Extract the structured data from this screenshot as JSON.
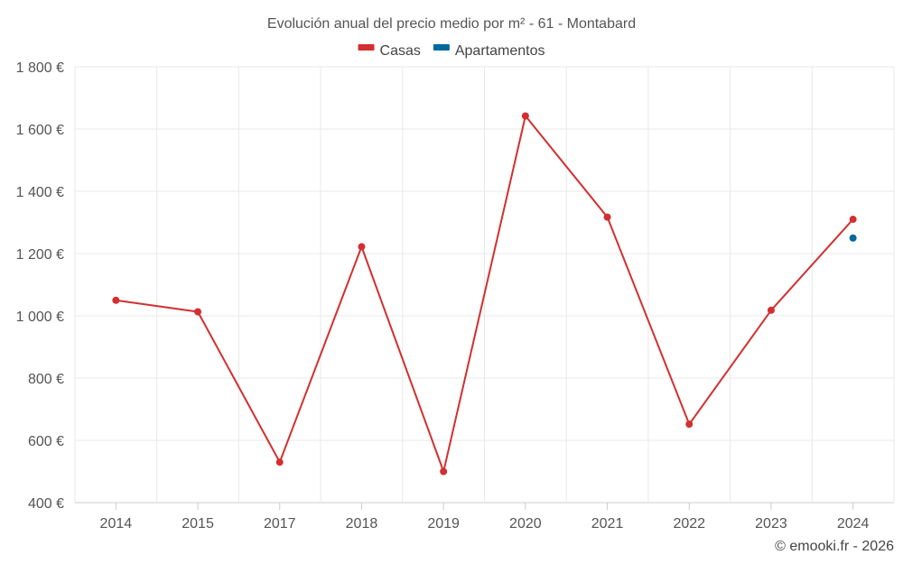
{
  "chart_data": {
    "type": "line",
    "title": "Evolución anual del precio medio por m² - 61 - Montabard",
    "categories": [
      "2014",
      "2015",
      "2017",
      "2018",
      "2019",
      "2020",
      "2021",
      "2022",
      "2023",
      "2024"
    ],
    "series": [
      {
        "name": "Casas",
        "color": "#d32f2f",
        "values": [
          1050,
          1013,
          530,
          1222,
          500,
          1642,
          1317,
          652,
          1018,
          1310
        ]
      },
      {
        "name": "Apartamentos",
        "color": "#01699f",
        "values": [
          null,
          null,
          null,
          null,
          null,
          null,
          null,
          null,
          null,
          1250
        ]
      }
    ],
    "ylim": [
      400,
      1800
    ],
    "yticks": [
      400,
      600,
      800,
      1000,
      1200,
      1400,
      1600,
      1800
    ],
    "ytick_labels": [
      "400 €",
      "600 €",
      "800 €",
      "1 000 €",
      "1 200 €",
      "1 400 €",
      "1 600 €",
      "1 800 €"
    ],
    "xlabel": "",
    "ylabel": "",
    "grid": true,
    "legend_position": "top-center"
  },
  "credit": "© emooki.fr - 2026"
}
